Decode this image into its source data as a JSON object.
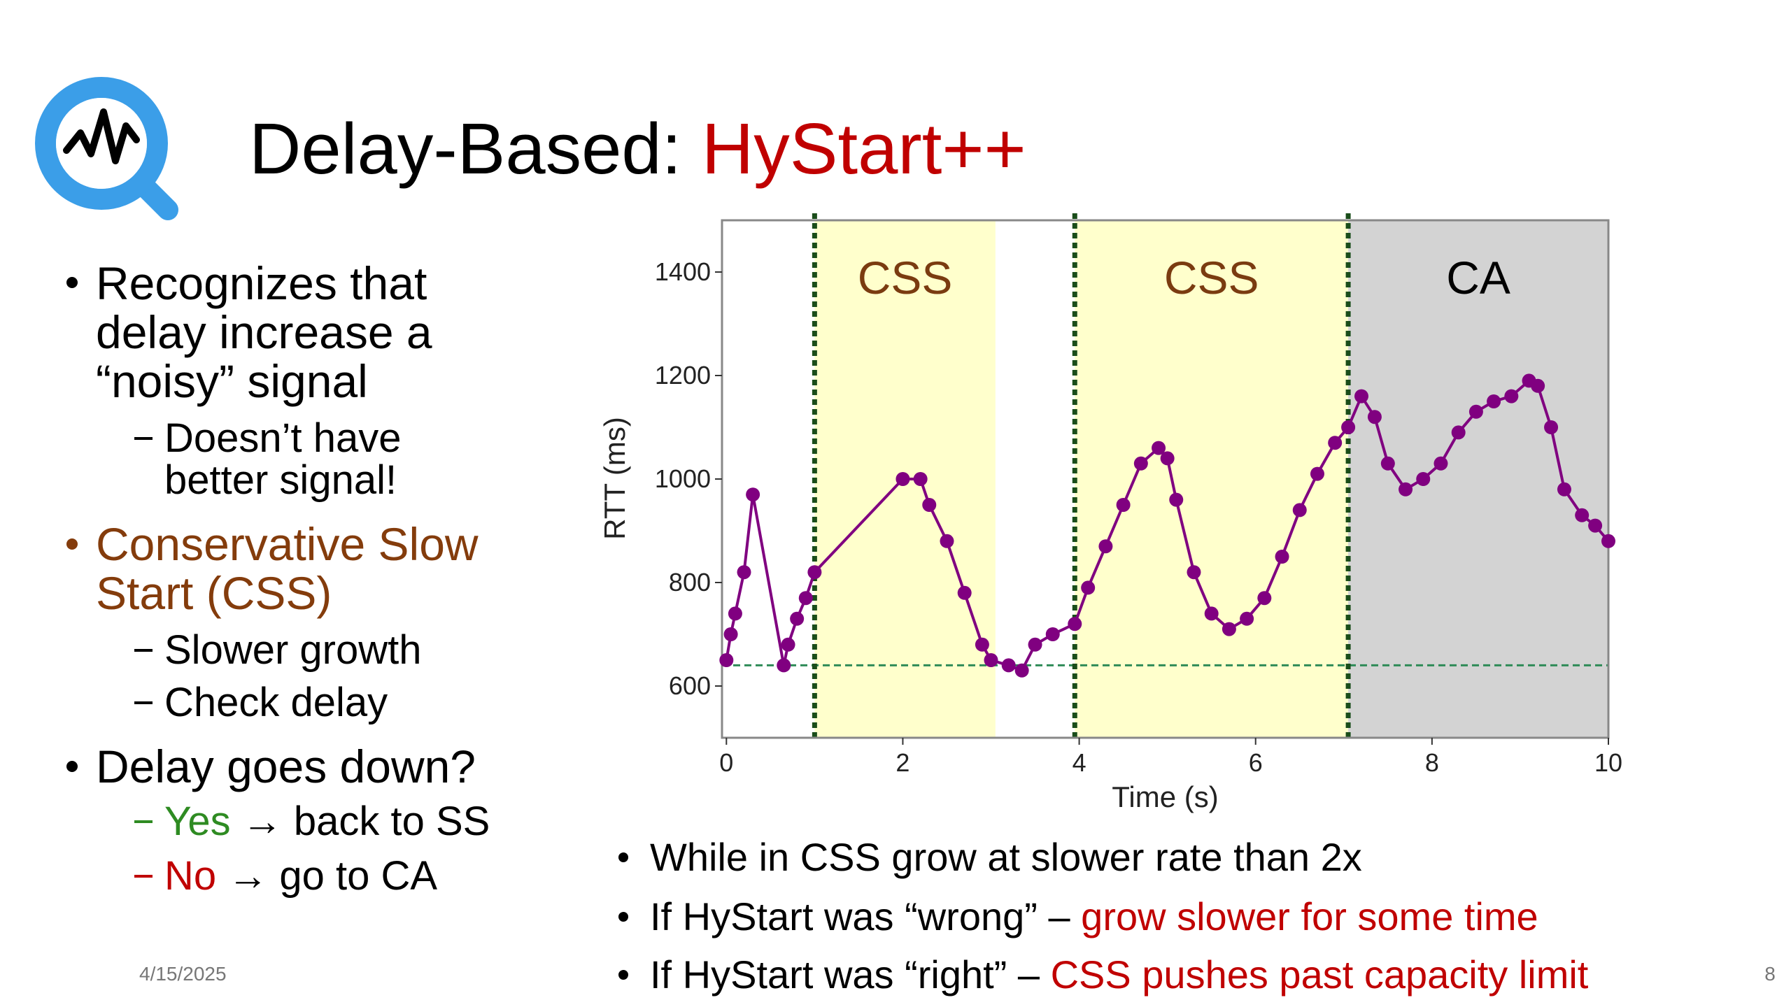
{
  "slide": {
    "title": {
      "prefix": "Delay-Based: ",
      "highlight": "HyStart++"
    },
    "left_bullets": {
      "b1": [
        "Recognizes that",
        "delay increase a",
        "“noisy” signal"
      ],
      "b1_sub": [
        "Doesn’t have",
        "better signal!"
      ],
      "b2": [
        "Conservative Slow",
        "Start (CSS)"
      ],
      "b2_sub": [
        "Slower growth",
        "Check delay"
      ],
      "b3": "Delay goes down?",
      "b3_yes": {
        "word": "Yes",
        "rest": "→ back to SS"
      },
      "b3_no": {
        "word": "No",
        "rest": "→ go to CA"
      }
    },
    "bottom_bullets": [
      {
        "text": "While in CSS grow at slower rate than 2x"
      },
      {
        "text": "If HyStart was “wrong” – ",
        "highlight": "grow slower for some time"
      },
      {
        "text": "If HyStart was “right” – ",
        "highlight": "CSS pushes past capacity limit"
      }
    ],
    "date": "4/15/2025",
    "page": "8"
  },
  "chart_data": {
    "type": "line",
    "xlabel": "Time (s)",
    "ylabel": "RTT (ms)",
    "xlim": [
      -0.05,
      10
    ],
    "ylim": [
      500,
      1500
    ],
    "xticks": [
      0,
      2,
      4,
      6,
      8,
      10
    ],
    "yticks": [
      600,
      800,
      1000,
      1200,
      1400
    ],
    "color": "#800080",
    "regions": [
      {
        "label": "CSS",
        "start": 1.0,
        "end": 3.05,
        "color": "#ffffcc"
      },
      {
        "label": "CSS",
        "start": 3.95,
        "end": 7.05,
        "color": "#ffffcc"
      },
      {
        "label": "CA",
        "start": 7.05,
        "end": 10,
        "color": "#d3d3d3"
      }
    ],
    "vlines": [
      1.0,
      3.95,
      7.05
    ],
    "baseline": 640,
    "x": [
      0.0,
      0.05,
      0.1,
      0.2,
      0.3,
      0.65,
      0.7,
      0.8,
      0.9,
      1.0,
      2.0,
      2.2,
      2.3,
      2.5,
      2.7,
      2.9,
      3.0,
      3.2,
      3.35,
      3.5,
      3.7,
      3.95,
      4.1,
      4.3,
      4.5,
      4.7,
      4.9,
      5.0,
      5.1,
      5.3,
      5.5,
      5.7,
      5.9,
      6.1,
      6.3,
      6.5,
      6.7,
      6.9,
      7.05,
      7.2,
      7.35,
      7.5,
      7.7,
      7.9,
      8.1,
      8.3,
      8.5,
      8.7,
      8.9,
      9.1,
      9.2,
      9.35,
      9.5,
      9.7,
      9.85,
      10.0
    ],
    "values": [
      650,
      700,
      740,
      820,
      970,
      640,
      680,
      730,
      770,
      820,
      1000,
      1000,
      950,
      880,
      780,
      680,
      650,
      640,
      630,
      680,
      700,
      720,
      790,
      870,
      950,
      1030,
      1060,
      1040,
      960,
      820,
      740,
      710,
      730,
      770,
      850,
      940,
      1010,
      1070,
      1100,
      1160,
      1120,
      1030,
      980,
      1000,
      1030,
      1090,
      1130,
      1150,
      1160,
      1190,
      1180,
      1100,
      980,
      930,
      910,
      880
    ]
  }
}
